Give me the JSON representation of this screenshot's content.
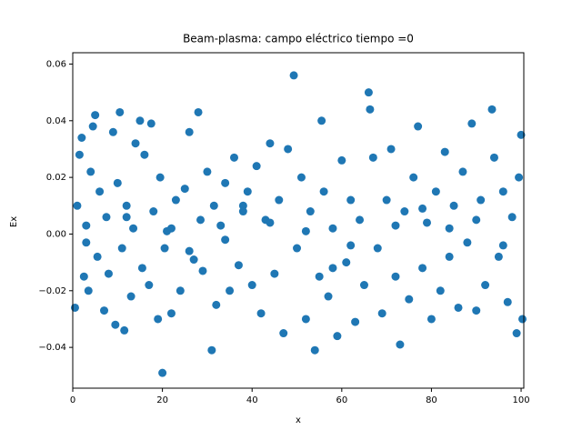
{
  "chart_data": {
    "type": "scatter",
    "title": "Beam-plasma: campo eléctrico  tiempo =0",
    "x_label": "x",
    "y_label": "Ex",
    "color": "#1f77b4",
    "x": [
      0.5,
      1,
      1.5,
      2,
      2.5,
      3,
      3.5,
      4,
      4.5,
      5,
      5.5,
      6,
      7,
      7.5,
      8,
      9,
      9.5,
      10,
      10.5,
      11,
      11.5,
      12,
      13,
      13.5,
      14,
      15,
      15.5,
      16,
      17,
      17.5,
      18,
      19,
      19.5,
      20,
      20.5,
      21,
      22,
      23,
      24,
      25,
      26,
      27,
      28,
      28.5,
      29,
      30,
      31,
      31.5,
      32,
      33,
      34,
      35,
      36,
      37,
      38,
      39,
      40,
      41,
      42,
      43,
      44,
      45,
      46,
      47,
      48,
      49.3,
      50,
      51,
      52,
      53,
      54,
      55,
      55.5,
      56,
      57,
      58,
      59,
      60,
      61,
      62,
      63,
      64,
      65,
      66,
      66.3,
      67,
      68,
      69,
      70,
      71,
      72,
      73,
      74,
      75,
      76,
      77,
      78,
      79,
      80,
      81,
      82,
      83,
      84,
      85,
      86,
      87,
      88,
      89,
      90,
      91,
      92,
      93.5,
      94,
      95,
      96,
      97,
      98,
      99,
      99.5,
      100,
      100.3,
      3,
      12,
      22,
      34,
      44,
      52,
      62,
      72,
      84,
      96,
      26,
      38,
      58,
      78,
      90
    ],
    "values": [
      -0.026,
      0.01,
      0.028,
      0.034,
      -0.015,
      0.003,
      -0.02,
      0.022,
      0.038,
      0.042,
      -0.008,
      0.015,
      -0.027,
      0.006,
      -0.014,
      0.036,
      -0.032,
      0.018,
      0.043,
      -0.005,
      -0.034,
      0.01,
      -0.022,
      0.002,
      0.032,
      0.04,
      -0.012,
      0.028,
      -0.018,
      0.039,
      0.008,
      -0.03,
      0.02,
      -0.049,
      -0.005,
      0.001,
      -0.028,
      0.012,
      -0.02,
      0.016,
      0.036,
      -0.009,
      0.043,
      0.005,
      -0.013,
      0.022,
      -0.041,
      0.01,
      -0.025,
      0.003,
      0.018,
      -0.02,
      0.027,
      -0.011,
      0.008,
      0.015,
      -0.018,
      0.024,
      -0.028,
      0.005,
      0.032,
      -0.014,
      0.012,
      -0.035,
      0.03,
      0.056,
      -0.005,
      0.02,
      -0.03,
      0.008,
      -0.041,
      -0.015,
      0.04,
      0.015,
      -0.022,
      0.002,
      -0.036,
      0.026,
      -0.01,
      0.012,
      -0.031,
      0.005,
      -0.018,
      0.05,
      0.044,
      0.027,
      -0.005,
      -0.028,
      0.012,
      0.03,
      -0.015,
      -0.039,
      0.008,
      -0.023,
      0.02,
      0.038,
      -0.012,
      0.004,
      -0.03,
      0.015,
      -0.02,
      0.029,
      -0.008,
      0.01,
      -0.026,
      0.022,
      -0.003,
      0.039,
      -0.027,
      0.012,
      -0.018,
      0.044,
      0.027,
      -0.008,
      0.015,
      -0.024,
      0.006,
      -0.035,
      0.02,
      0.035,
      -0.03,
      -0.003,
      0.006,
      0.002,
      -0.002,
      0.004,
      0.001,
      -0.004,
      0.003,
      0.002,
      -0.004,
      -0.006,
      0.01,
      -0.012,
      0.009,
      0.005
    ],
    "xlim": [
      0,
      100.6
    ],
    "ylim": [
      -0.0544,
      0.064
    ],
    "xticks": [
      0,
      20,
      40,
      60,
      80,
      100
    ],
    "yticks": [
      {
        "value": -0.04,
        "label": "−0.04"
      },
      {
        "value": -0.02,
        "label": "−0.02"
      },
      {
        "value": 0,
        "label": "0.00"
      },
      {
        "value": 0.02,
        "label": "0.02"
      },
      {
        "value": 0.04,
        "label": "0.04"
      },
      {
        "value": 0.06,
        "label": "0.06"
      }
    ]
  }
}
